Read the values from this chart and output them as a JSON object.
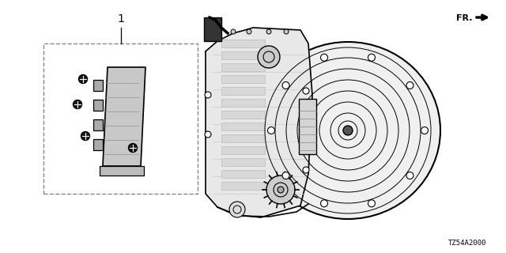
{
  "bg_color": "#ffffff",
  "line_color": "#000000",
  "gray_color": "#888888",
  "light_gray": "#aaaaaa",
  "diagram_code": "TZ54A2000",
  "fr_label": "FR.",
  "item_number": "1",
  "fig_size": [
    6.4,
    3.2
  ],
  "dpi": 100
}
